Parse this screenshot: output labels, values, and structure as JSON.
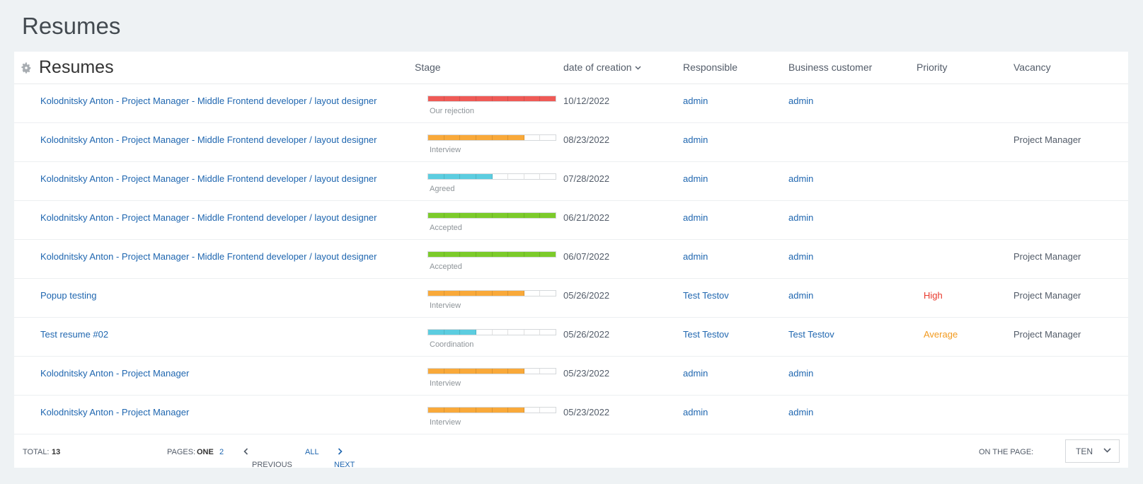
{
  "page": {
    "title": "Resumes"
  },
  "table": {
    "title": "Resumes",
    "headers": {
      "stage": "Stage",
      "date": "date of creation",
      "responsible": "Responsible",
      "business": "Business customer",
      "priority": "Priority",
      "vacancy": "Vacancy"
    },
    "rows": [
      {
        "name": "Kolodnitsky Anton - Project Manager - Middle Frontend developer / layout designer",
        "stage_label": "Our rejection",
        "stage_color": "#ef5a56",
        "stage_filled": 8,
        "date": "10/12/2022",
        "responsible": "admin",
        "business": "admin",
        "priority": "",
        "priority_level": "",
        "vacancy": ""
      },
      {
        "name": "Kolodnitsky Anton - Project Manager - Middle Frontend developer / layout designer",
        "stage_label": "Interview",
        "stage_color": "#f9a93a",
        "stage_filled": 6,
        "date": "08/23/2022",
        "responsible": "admin",
        "business": "",
        "priority": "",
        "priority_level": "",
        "vacancy": "Project Manager"
      },
      {
        "name": "Kolodnitsky Anton - Project Manager - Middle Frontend developer / layout designer",
        "stage_label": "Agreed",
        "stage_color": "#5ccde0",
        "stage_filled": 4,
        "date": "07/28/2022",
        "responsible": "admin",
        "business": "admin",
        "priority": "",
        "priority_level": "",
        "vacancy": ""
      },
      {
        "name": "Kolodnitsky Anton - Project Manager - Middle Frontend developer / layout designer",
        "stage_label": "Accepted",
        "stage_color": "#7ccb2b",
        "stage_filled": 8,
        "date": "06/21/2022",
        "responsible": "admin",
        "business": "admin",
        "priority": "",
        "priority_level": "",
        "vacancy": ""
      },
      {
        "name": "Kolodnitsky Anton - Project Manager - Middle Frontend developer / layout designer",
        "stage_label": "Accepted",
        "stage_color": "#7ccb2b",
        "stage_filled": 8,
        "date": "06/07/2022",
        "responsible": "admin",
        "business": "admin",
        "priority": "",
        "priority_level": "",
        "vacancy": "Project Manager"
      },
      {
        "name": "Popup testing",
        "stage_label": "Interview",
        "stage_color": "#f9a93a",
        "stage_filled": 6,
        "date": "05/26/2022",
        "responsible": "Test Testov",
        "business": "admin",
        "priority": "High",
        "priority_level": "high",
        "vacancy": "Project Manager"
      },
      {
        "name": "Test resume #02",
        "stage_label": "Coordination",
        "stage_color": "#5ccde0",
        "stage_filled": 3,
        "date": "05/26/2022",
        "responsible": "Test Testov",
        "business": "Test Testov",
        "priority": "Average",
        "priority_level": "avg",
        "vacancy": "Project Manager"
      },
      {
        "name": "Kolodnitsky Anton - Project Manager",
        "stage_label": "Interview",
        "stage_color": "#f9a93a",
        "stage_filled": 6,
        "date": "05/23/2022",
        "responsible": "admin",
        "business": "admin",
        "priority": "",
        "priority_level": "",
        "vacancy": ""
      },
      {
        "name": "Kolodnitsky Anton - Project Manager",
        "stage_label": "Interview",
        "stage_color": "#f9a93a",
        "stage_filled": 6,
        "date": "05/23/2022",
        "responsible": "admin",
        "business": "admin",
        "priority": "",
        "priority_level": "",
        "vacancy": ""
      }
    ],
    "stage_segments": 8
  },
  "footer": {
    "total_label": "Total:",
    "total_value": "13",
    "pages_label": "Pages:",
    "page_current": "one",
    "page_next": "2",
    "prev": "Previous",
    "all": "All",
    "next": "Next",
    "per_page_label": "On the page:",
    "per_page_value": "ten"
  }
}
